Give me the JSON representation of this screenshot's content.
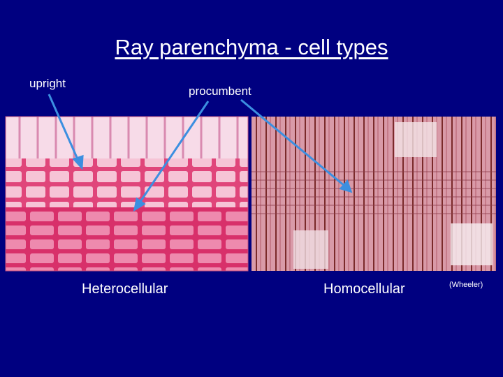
{
  "title": "Ray parenchyma - cell types",
  "labels": {
    "upright": "upright",
    "procumbent": "procumbent"
  },
  "captions": {
    "left": "Heterocellular",
    "right": "Homocellular",
    "credit": "(Wheeler)"
  }
}
